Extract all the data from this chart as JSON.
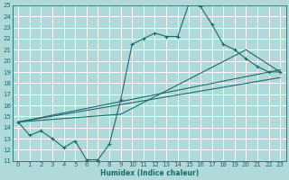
{
  "xlabel": "Humidex (Indice chaleur)",
  "xlim": [
    -0.5,
    23.5
  ],
  "ylim": [
    11,
    25
  ],
  "xticks": [
    0,
    1,
    2,
    3,
    4,
    5,
    6,
    7,
    8,
    9,
    10,
    11,
    12,
    13,
    14,
    15,
    16,
    17,
    18,
    19,
    20,
    21,
    22,
    23
  ],
  "yticks": [
    11,
    12,
    13,
    14,
    15,
    16,
    17,
    18,
    19,
    20,
    21,
    22,
    23,
    24,
    25
  ],
  "bg_color": "#b0dada",
  "grid_color": "#ffffff",
  "line_color": "#1a6b6b",
  "line1_x": [
    0,
    1,
    2,
    3,
    4,
    5,
    6,
    7,
    8,
    9,
    10,
    11,
    12,
    13,
    14,
    15,
    16,
    17,
    18,
    19,
    20,
    21,
    22,
    23
  ],
  "line1_y": [
    14.5,
    13.3,
    13.7,
    13.0,
    12.2,
    12.8,
    11.1,
    11.1,
    12.5,
    16.5,
    21.5,
    22.0,
    22.5,
    22.2,
    22.2,
    25.2,
    24.9,
    23.3,
    21.5,
    21.0,
    20.2,
    19.5,
    19.0,
    19.0
  ],
  "line2_x": [
    0,
    9,
    20,
    23
  ],
  "line2_y": [
    14.5,
    15.2,
    21.0,
    19.0
  ],
  "line3_x": [
    0,
    23
  ],
  "line3_y": [
    14.5,
    18.5
  ],
  "line4_x": [
    0,
    23
  ],
  "line4_y": [
    14.5,
    19.2
  ]
}
